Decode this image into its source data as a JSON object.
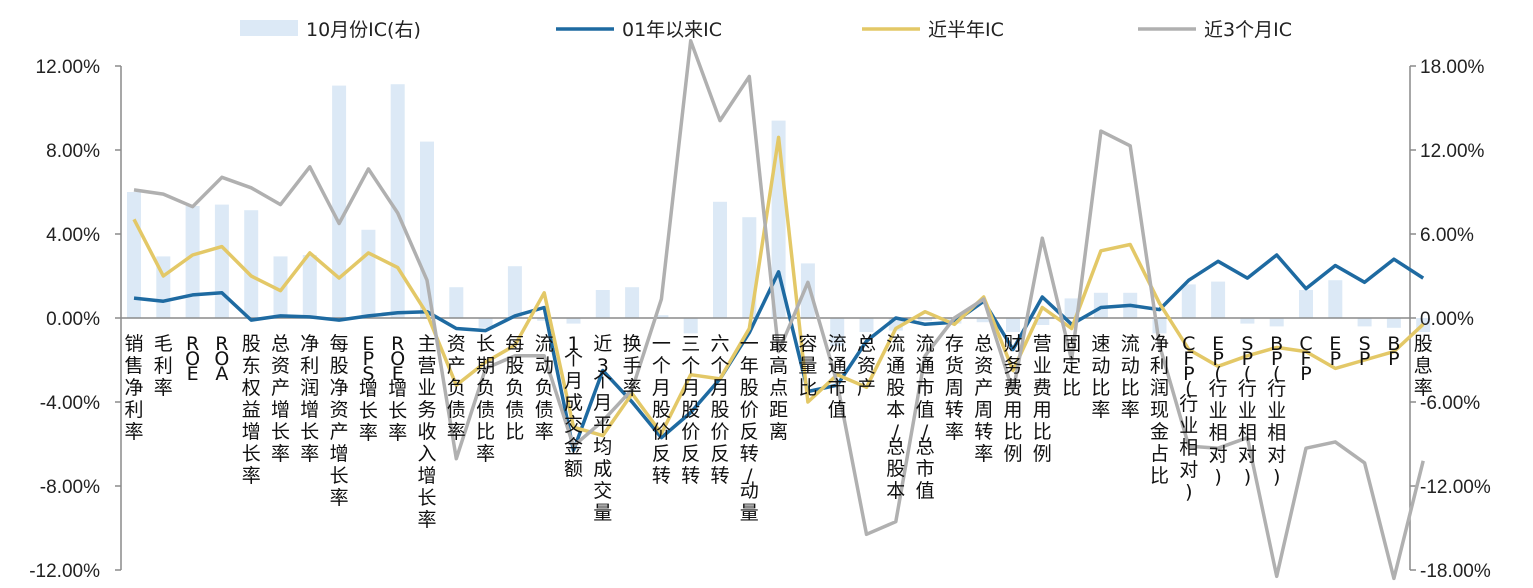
{
  "chart_data": {
    "type": "bar+line",
    "categories": [
      "销售净利率",
      "毛利率",
      "ROE",
      "ROA",
      "股东权益增长率",
      "总资产增长率",
      "净利润增长率",
      "每股净资产增长率",
      "EPS增长率",
      "ROE增长率",
      "主营业务收入增长率",
      "资产负债率",
      "长期负债比率",
      "每股负债比",
      "流动负债率",
      "1个月成交金额",
      "近3个月平均成交量",
      "换手率",
      "一个月股价反转",
      "三个月股价反转",
      "六个月股价反转",
      "一年股价反转/动量",
      "最高点距离",
      "容量比",
      "流通市值",
      "总资产",
      "流通股本/总股本",
      "流通市值/总市值",
      "存货周转率",
      "总资产周转率",
      "财务费用比例",
      "营业费用比例",
      "固定比",
      "速动比率",
      "流动比率",
      "净利润现金占比",
      "CFP(行业相对)",
      "EP(行业相对)",
      "SP(行业相对)",
      "BP(行业相对)",
      "CFP",
      "EP",
      "SP",
      "BP",
      "股息率"
    ],
    "left_axis": {
      "min": -12,
      "max": 12,
      "ticks": [
        "12.00%",
        "8.00%",
        "4.00%",
        "0.00%",
        "-4.00%",
        "-8.00%",
        "-12.00%"
      ]
    },
    "right_axis": {
      "min": -18,
      "max": 18,
      "ticks": [
        "18.00%",
        "12.00%",
        "6.00%",
        "0.00%",
        "-6.00%",
        "-12.00%",
        "-18.00%"
      ]
    },
    "series": [
      {
        "name": "10月份IC(右)",
        "kind": "bar",
        "axis": "right",
        "color": "#dce9f6",
        "values": [
          9.0,
          4.4,
          8.0,
          8.1,
          7.7,
          4.4,
          4.5,
          16.6,
          6.3,
          16.7,
          12.6,
          2.2,
          -0.7,
          3.7,
          -0.2,
          -0.4,
          2.0,
          2.2,
          0.2,
          -1.1,
          8.3,
          7.2,
          14.1,
          3.9,
          -2.0,
          -1.0,
          -0.9,
          -0.2,
          -0.4,
          -0.3,
          -1.0,
          -0.5,
          1.4,
          1.8,
          1.8,
          -1.1,
          2.4,
          2.6,
          -0.4,
          -0.6,
          2.0,
          2.7,
          -0.6,
          -0.7,
          -1.0
        ]
      },
      {
        "name": "01年以来IC",
        "kind": "line",
        "axis": "left",
        "color": "#1e6aa1",
        "values": [
          0.95,
          0.8,
          1.1,
          1.2,
          -0.1,
          0.1,
          0.05,
          -0.1,
          0.1,
          0.25,
          0.3,
          -0.5,
          -0.6,
          0.1,
          0.5,
          -6.3,
          -2.5,
          -4.0,
          -5.7,
          -4.5,
          -2.9,
          -0.7,
          2.2,
          -3.5,
          -3.2,
          -1.1,
          0.0,
          -0.3,
          -0.2,
          0.8,
          -1.5,
          1.0,
          -0.3,
          0.5,
          0.6,
          0.4,
          1.8,
          2.7,
          1.9,
          3.0,
          1.4,
          2.5,
          1.7,
          2.8,
          1.9
        ]
      },
      {
        "name": "近半年IC",
        "kind": "line",
        "axis": "left",
        "color": "#e3c867",
        "values": [
          4.7,
          2.0,
          3.0,
          3.4,
          2.0,
          1.3,
          3.1,
          1.9,
          3.1,
          2.4,
          0.2,
          -3.2,
          -2.1,
          -1.3,
          1.2,
          -5.2,
          -5.6,
          -3.6,
          -5.5,
          -2.7,
          -2.9,
          -0.5,
          8.6,
          -4.0,
          -2.7,
          -3.3,
          -0.5,
          0.3,
          -0.3,
          1.0,
          -2.5,
          0.5,
          -0.5,
          3.2,
          3.5,
          0.7,
          -1.5,
          -2.3,
          -1.8,
          -1.4,
          -1.6,
          -2.4,
          -2.0,
          -1.6,
          -0.3
        ]
      },
      {
        "name": "近3个月IC",
        "kind": "line",
        "axis": "left",
        "color": "#b0b0b0",
        "values": [
          6.1,
          5.9,
          5.3,
          6.7,
          6.2,
          5.4,
          7.2,
          4.5,
          7.1,
          5.0,
          1.8,
          -6.7,
          -2.4,
          -1.8,
          -1.8,
          -6.1,
          -4.9,
          -3.4,
          0.9,
          13.2,
          9.4,
          11.5,
          -1.6,
          1.7,
          -3.1,
          -10.3,
          -9.7,
          -1.8,
          0.0,
          0.9,
          -3.5,
          3.8,
          -2.0,
          8.9,
          8.2,
          -1.3,
          -6.1,
          -6.2,
          -5.7,
          -12.3,
          -6.2,
          -5.9,
          -6.9,
          -12.4,
          -6.8
        ]
      }
    ],
    "grid": false,
    "legend": "top"
  }
}
